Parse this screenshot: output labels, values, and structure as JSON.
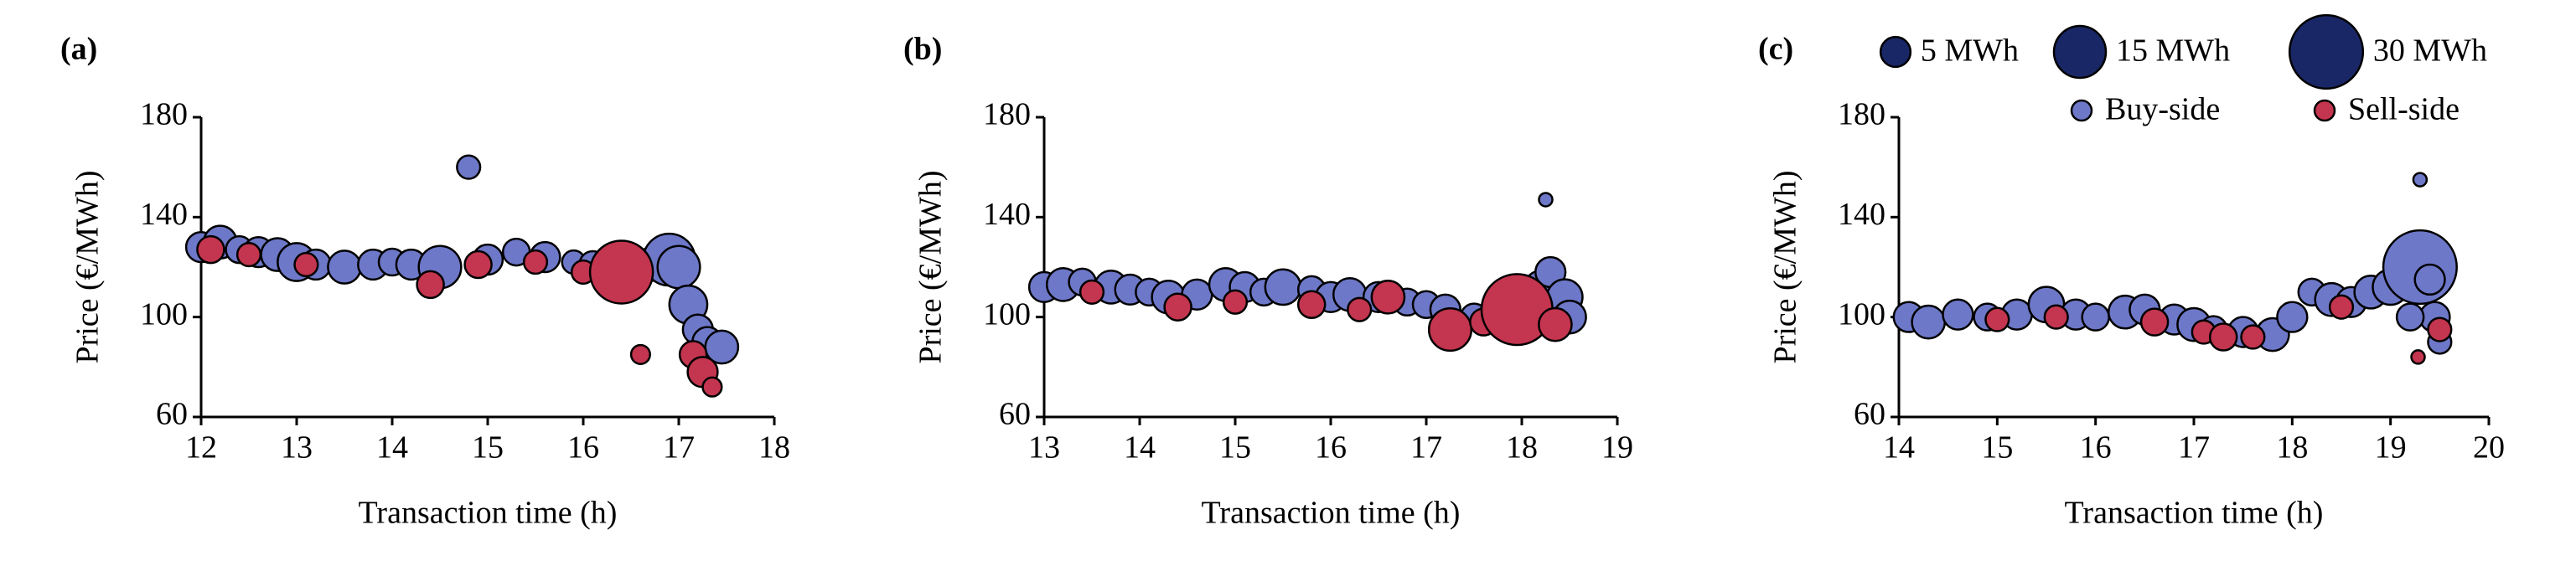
{
  "chart_data": [
    {
      "type": "bubble",
      "panel": "(a)",
      "x_label": "Transaction time (h)",
      "y_label": "Price (€/MWh)",
      "xlim": [
        12,
        18
      ],
      "xticks": [
        12,
        13,
        14,
        15,
        16,
        17,
        18
      ],
      "ylim": [
        60,
        180
      ],
      "yticks": [
        60,
        100,
        140,
        180
      ],
      "legend": false,
      "series": [
        {
          "color": "#6e78c8",
          "x": [
            12.0,
            12.2,
            12.4,
            12.6,
            12.8,
            13.0,
            13.2,
            13.5,
            13.8,
            14.0,
            14.2,
            14.5,
            14.8,
            15.0,
            15.3,
            15.6,
            15.9,
            16.1,
            16.3,
            16.7,
            16.9,
            17.0,
            17.1,
            17.2,
            17.3,
            17.45
          ],
          "values": [
            128,
            130,
            127,
            126,
            125,
            122,
            121,
            120,
            121,
            122,
            121,
            120,
            160,
            123,
            126,
            124,
            122,
            121,
            120,
            121,
            123,
            120,
            105,
            95,
            90,
            88
          ],
          "sizes": [
            5,
            6,
            4,
            5,
            6,
            8,
            5,
            6,
            5,
            4,
            5,
            10,
            3,
            5,
            4,
            5,
            3,
            4,
            3,
            6,
            15,
            10,
            8,
            5,
            5,
            6
          ]
        },
        {
          "color": "#c4354f",
          "x": [
            12.1,
            12.5,
            13.1,
            14.4,
            14.9,
            15.5,
            16.0,
            16.4,
            16.6,
            17.15,
            17.25,
            17.35
          ],
          "values": [
            127,
            125,
            121,
            113,
            121,
            122,
            118,
            118,
            85,
            85,
            78,
            72
          ],
          "sizes": [
            4,
            3,
            3,
            4,
            4,
            3,
            3,
            22,
            2,
            4,
            5,
            2
          ]
        }
      ]
    },
    {
      "type": "bubble",
      "panel": "(b)",
      "x_label": "Transaction time (h)",
      "y_label": "Price (€/MWh)",
      "xlim": [
        13,
        19
      ],
      "xticks": [
        13,
        14,
        15,
        16,
        17,
        18,
        19
      ],
      "ylim": [
        60,
        180
      ],
      "yticks": [
        60,
        100,
        140,
        180
      ],
      "legend": false,
      "series": [
        {
          "color": "#6e78c8",
          "x": [
            13.0,
            13.2,
            13.4,
            13.7,
            13.9,
            14.1,
            14.3,
            14.6,
            14.9,
            15.1,
            15.3,
            15.5,
            15.8,
            16.0,
            16.2,
            16.5,
            16.8,
            17.0,
            17.2,
            17.5,
            17.7,
            18.1,
            18.2,
            18.3,
            18.45,
            18.5,
            18.25
          ],
          "values": [
            112,
            113,
            114,
            112,
            111,
            110,
            108,
            109,
            113,
            112,
            110,
            112,
            111,
            108,
            109,
            108,
            106,
            105,
            103,
            100,
            100,
            105,
            112,
            118,
            108,
            100,
            147
          ],
          "sizes": [
            5,
            6,
            4,
            6,
            5,
            4,
            6,
            5,
            6,
            5,
            4,
            7,
            4,
            5,
            6,
            5,
            4,
            4,
            5,
            4,
            5,
            8,
            6,
            5,
            7,
            6,
            1
          ]
        },
        {
          "color": "#c4354f",
          "x": [
            13.5,
            14.4,
            15.0,
            15.8,
            16.3,
            16.6,
            17.25,
            17.6,
            17.95,
            18.35
          ],
          "values": [
            110,
            104,
            106,
            105,
            103,
            108,
            95,
            98,
            103,
            97
          ],
          "sizes": [
            3,
            4,
            3,
            4,
            3,
            6,
            10,
            4,
            28,
            6
          ]
        }
      ]
    },
    {
      "type": "bubble",
      "panel": "(c)",
      "x_label": "Transaction time (h)",
      "y_label": "Price (€/MWh)",
      "xlim": [
        14,
        20
      ],
      "xticks": [
        14,
        15,
        16,
        17,
        18,
        19,
        20
      ],
      "ylim": [
        60,
        180
      ],
      "yticks": [
        60,
        100,
        140,
        180
      ],
      "legend": true,
      "size_legend": [
        {
          "value": 5,
          "label": "5 MWh"
        },
        {
          "value": 15,
          "label": "15 MWh"
        },
        {
          "value": 30,
          "label": "30 MWh"
        }
      ],
      "size_legend_color": "#1a2766",
      "series": [
        {
          "name": "Buy-side",
          "color": "#6e78c8",
          "x": [
            14.1,
            14.3,
            14.6,
            14.9,
            15.2,
            15.5,
            15.8,
            16.0,
            16.3,
            16.5,
            16.8,
            17.0,
            17.2,
            17.5,
            17.8,
            18.0,
            18.2,
            18.4,
            18.6,
            18.8,
            19.0,
            19.3,
            19.4,
            19.45,
            19.5,
            19.3,
            19.2
          ],
          "values": [
            100,
            98,
            101,
            100,
            101,
            105,
            101,
            100,
            102,
            103,
            99,
            97,
            95,
            94,
            93,
            100,
            110,
            107,
            106,
            110,
            112,
            120,
            115,
            100,
            90,
            155,
            100
          ],
          "sizes": [
            5,
            6,
            5,
            4,
            5,
            7,
            5,
            4,
            6,
            5,
            5,
            6,
            4,
            5,
            6,
            5,
            4,
            6,
            5,
            6,
            7,
            30,
            5,
            5,
            3,
            1,
            4
          ]
        },
        {
          "name": "Sell-side",
          "color": "#c4354f",
          "x": [
            15.0,
            15.6,
            16.6,
            17.1,
            17.3,
            17.6,
            18.5,
            19.28,
            19.5
          ],
          "values": [
            99,
            100,
            98,
            94,
            92,
            92,
            104,
            84,
            95
          ],
          "sizes": [
            3,
            3,
            4,
            3,
            4,
            3,
            3,
            1,
            3
          ]
        }
      ]
    }
  ]
}
